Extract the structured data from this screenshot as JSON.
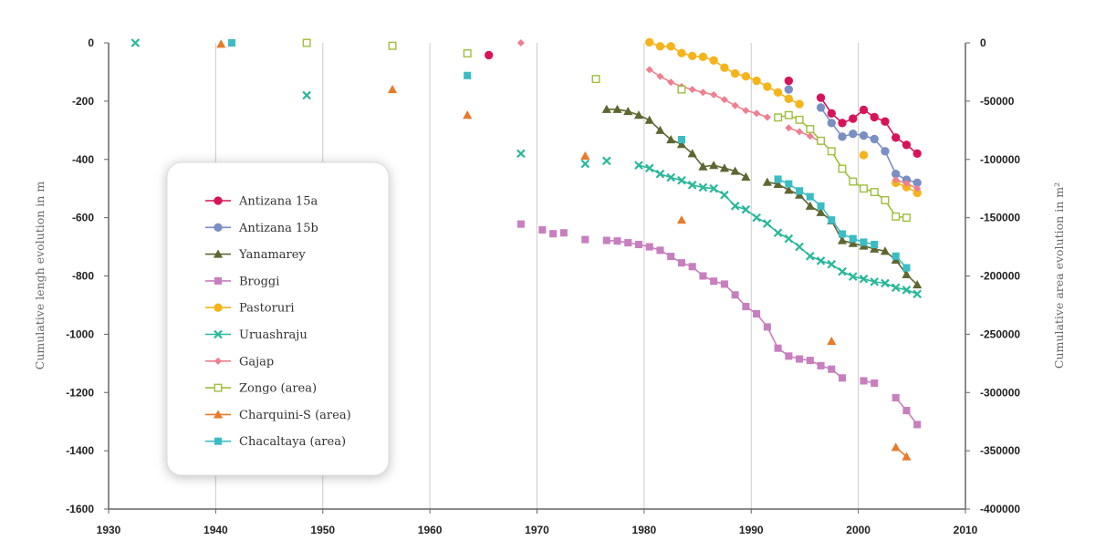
{
  "chart_data": {
    "type": "scatter",
    "title": "",
    "xlabel": "",
    "ylabel": "Cumulative lengh evolution in m",
    "y2label": "Cumulative area evolution in m²",
    "xlim": [
      1930,
      2010
    ],
    "ylim": [
      -1600,
      0
    ],
    "y2lim": [
      -400000,
      0
    ],
    "x_ticks": [
      1930,
      1940,
      1950,
      1960,
      1970,
      1980,
      1990,
      2000,
      2010
    ],
    "y_ticks": [
      0,
      -200,
      -400,
      -600,
      -800,
      -1000,
      -1200,
      -1400,
      -1600
    ],
    "y2_ticks": [
      "0",
      "-50000",
      "-100000",
      "-150000",
      "-200000",
      "-250000",
      "-300000",
      "-350000",
      "-400000"
    ],
    "grid": "vertical",
    "legend_position": "left",
    "series": [
      {
        "name": "Antizana 15a",
        "axis": "left",
        "color": "#d6145a",
        "marker": "circle",
        "points": [
          [
            1965.5,
            -42
          ],
          [
            1993.5,
            -130
          ],
          [
            1996.5,
            -188
          ],
          [
            1997.5,
            -242
          ],
          [
            1998.5,
            -275
          ],
          [
            1999.5,
            -260
          ],
          [
            2000.5,
            -230
          ],
          [
            2001.5,
            -255
          ],
          [
            2002.5,
            -270
          ],
          [
            2003.5,
            -325
          ],
          [
            2004.5,
            -350
          ],
          [
            2005.5,
            -380
          ]
        ],
        "connect_from": 2
      },
      {
        "name": "Antizana 15b",
        "axis": "left",
        "color": "#7a8fc2",
        "marker": "circle",
        "points": [
          [
            1993.5,
            -160
          ],
          [
            1996.5,
            -222
          ],
          [
            1997.5,
            -275
          ],
          [
            1998.5,
            -322
          ],
          [
            1999.5,
            -312
          ],
          [
            2000.5,
            -318
          ],
          [
            2001.5,
            -330
          ],
          [
            2002.5,
            -372
          ],
          [
            2003.5,
            -450
          ],
          [
            2004.5,
            -470
          ],
          [
            2005.5,
            -480
          ]
        ],
        "connect_from": 1
      },
      {
        "name": "Yanamarey",
        "axis": "left",
        "color": "#5e6632",
        "marker": "triangle",
        "points": [
          [
            1976.5,
            -228
          ],
          [
            1977.5,
            -228
          ],
          [
            1978.5,
            -235
          ],
          [
            1979.5,
            -248
          ],
          [
            1980.5,
            -265
          ],
          [
            1981.5,
            -300
          ],
          [
            1982.5,
            -332
          ],
          [
            1983.5,
            -348
          ],
          [
            1984.5,
            -380
          ],
          [
            1985.5,
            -425
          ],
          [
            1986.5,
            -420
          ],
          [
            1987.5,
            -430
          ],
          [
            1988.5,
            -440
          ],
          [
            1989.5,
            -460
          ],
          [
            1991.5,
            -478
          ],
          [
            1992.5,
            -485
          ],
          [
            1993.5,
            -505
          ],
          [
            1994.5,
            -522
          ],
          [
            1995.5,
            -560
          ],
          [
            1996.5,
            -582
          ],
          [
            1997.5,
            -610
          ],
          [
            1998.5,
            -678
          ],
          [
            1999.5,
            -688
          ],
          [
            2000.5,
            -697
          ],
          [
            2001.5,
            -707
          ],
          [
            2002.5,
            -715
          ],
          [
            2003.5,
            -745
          ],
          [
            2004.5,
            -795
          ],
          [
            2005.5,
            -830
          ]
        ],
        "segments": [
          [
            0,
            13
          ],
          [
            14,
            28
          ]
        ]
      },
      {
        "name": "Broggi",
        "axis": "left",
        "color": "#c77fbf",
        "marker": "square",
        "points": [
          [
            1968.5,
            -622
          ],
          [
            1970.5,
            -642
          ],
          [
            1971.5,
            -655
          ],
          [
            1972.5,
            -652
          ],
          [
            1974.5,
            -675
          ],
          [
            1976.5,
            -678
          ],
          [
            1977.5,
            -680
          ],
          [
            1978.5,
            -686
          ],
          [
            1979.5,
            -692
          ],
          [
            1980.5,
            -700
          ],
          [
            1981.5,
            -712
          ],
          [
            1982.5,
            -733
          ],
          [
            1983.5,
            -755
          ],
          [
            1984.5,
            -768
          ],
          [
            1985.5,
            -800
          ],
          [
            1986.5,
            -818
          ],
          [
            1987.5,
            -828
          ],
          [
            1988.5,
            -865
          ],
          [
            1989.5,
            -905
          ],
          [
            1990.5,
            -930
          ],
          [
            1991.5,
            -975
          ],
          [
            1992.5,
            -1048
          ],
          [
            1993.5,
            -1075
          ],
          [
            1994.5,
            -1085
          ],
          [
            1995.5,
            -1090
          ],
          [
            1996.5,
            -1108
          ],
          [
            1997.5,
            -1120
          ],
          [
            1998.5,
            -1150
          ],
          [
            2000.5,
            -1160
          ],
          [
            2001.5,
            -1168
          ],
          [
            2003.5,
            -1218
          ],
          [
            2004.5,
            -1262
          ],
          [
            2005.5,
            -1310
          ]
        ],
        "segments": [
          [
            5,
            27
          ],
          [
            28,
            29
          ],
          [
            30,
            32
          ]
        ]
      },
      {
        "name": "Pastoruri",
        "axis": "left",
        "color": "#f5b41c",
        "marker": "circle",
        "points": [
          [
            1980.5,
            2
          ],
          [
            1981.5,
            -12
          ],
          [
            1982.5,
            -12
          ],
          [
            1983.5,
            -35
          ],
          [
            1984.5,
            -45
          ],
          [
            1985.5,
            -48
          ],
          [
            1986.5,
            -60
          ],
          [
            1987.5,
            -85
          ],
          [
            1988.5,
            -105
          ],
          [
            1989.5,
            -115
          ],
          [
            1990.5,
            -130
          ],
          [
            1991.5,
            -150
          ],
          [
            1992.5,
            -170
          ],
          [
            1993.5,
            -192
          ],
          [
            1994.5,
            -210
          ],
          [
            2000.5,
            -385
          ],
          [
            2003.5,
            -480
          ],
          [
            2004.5,
            -495
          ],
          [
            2005.5,
            -515
          ]
        ],
        "segments": [
          [
            0,
            14
          ],
          [
            16,
            18
          ]
        ]
      },
      {
        "name": "Uruashraju",
        "axis": "left",
        "color": "#2ab89a",
        "marker": "cross",
        "points": [
          [
            1932.5,
            0
          ],
          [
            1948.5,
            -180
          ],
          [
            1968.5,
            -380
          ],
          [
            1974.5,
            -415
          ],
          [
            1976.5,
            -405
          ],
          [
            1979.5,
            -420
          ],
          [
            1980.5,
            -430
          ],
          [
            1981.5,
            -450
          ],
          [
            1982.5,
            -462
          ],
          [
            1983.5,
            -472
          ],
          [
            1984.5,
            -488
          ],
          [
            1985.5,
            -496
          ],
          [
            1986.5,
            -500
          ],
          [
            1987.5,
            -522
          ],
          [
            1988.5,
            -560
          ],
          [
            1989.5,
            -572
          ],
          [
            1990.5,
            -600
          ],
          [
            1991.5,
            -620
          ],
          [
            1992.5,
            -652
          ],
          [
            1993.5,
            -672
          ],
          [
            1994.5,
            -700
          ],
          [
            1995.5,
            -732
          ],
          [
            1996.5,
            -748
          ],
          [
            1997.5,
            -760
          ],
          [
            1998.5,
            -785
          ],
          [
            1999.5,
            -802
          ],
          [
            2000.5,
            -810
          ],
          [
            2001.5,
            -820
          ],
          [
            2002.5,
            -825
          ],
          [
            2003.5,
            -840
          ],
          [
            2004.5,
            -848
          ],
          [
            2005.5,
            -862
          ]
        ],
        "connect_from": 5
      },
      {
        "name": "Gajap",
        "axis": "left",
        "color": "#ef7f8f",
        "marker": "diamond",
        "points": [
          [
            1968.5,
            0
          ],
          [
            1980.5,
            -92
          ],
          [
            1981.5,
            -115
          ],
          [
            1982.5,
            -135
          ],
          [
            1983.5,
            -150
          ],
          [
            1984.5,
            -160
          ],
          [
            1985.5,
            -170
          ],
          [
            1986.5,
            -178
          ],
          [
            1987.5,
            -195
          ],
          [
            1988.5,
            -215
          ],
          [
            1989.5,
            -232
          ],
          [
            1990.5,
            -242
          ],
          [
            1991.5,
            -255
          ],
          [
            1993.5,
            -292
          ],
          [
            1994.5,
            -305
          ],
          [
            1995.5,
            -320
          ],
          [
            1996.5,
            -340
          ],
          [
            2003.5,
            -470
          ],
          [
            2004.5,
            -482
          ],
          [
            2005.5,
            -500
          ]
        ],
        "segments": [
          [
            1,
            12
          ],
          [
            13,
            16
          ],
          [
            17,
            19
          ]
        ]
      },
      {
        "name": "Zongo (area)",
        "axis": "right",
        "color": "#9dbf3c",
        "marker": "square-open",
        "points": [
          [
            1948.5,
            0
          ],
          [
            1956.5,
            -2500
          ],
          [
            1963.5,
            -9000
          ],
          [
            1975.5,
            -31000
          ],
          [
            1983.5,
            -40000
          ],
          [
            1992.5,
            -64000
          ],
          [
            1993.5,
            -62000
          ],
          [
            1994.5,
            -66000
          ],
          [
            1995.5,
            -74000
          ],
          [
            1996.5,
            -84000
          ],
          [
            1997.5,
            -93000
          ],
          [
            1998.5,
            -108000
          ],
          [
            1999.5,
            -119000
          ],
          [
            2000.5,
            -125000
          ],
          [
            2001.5,
            -128000
          ],
          [
            2002.5,
            -135000
          ],
          [
            2003.5,
            -149000
          ],
          [
            2004.5,
            -150000
          ]
        ],
        "connect_from": 5
      },
      {
        "name": "Charquini-S (area)",
        "axis": "right",
        "color": "#e87a2a",
        "marker": "triangle",
        "points": [
          [
            1940.5,
            -1000
          ],
          [
            1956.5,
            -40000
          ],
          [
            1963.5,
            -62000
          ],
          [
            1974.5,
            -97000
          ],
          [
            1983.5,
            -152000
          ],
          [
            1997.5,
            -256000
          ],
          [
            2003.5,
            -347000
          ],
          [
            2004.5,
            -355000
          ]
        ],
        "segments": [
          [
            6,
            7
          ]
        ]
      },
      {
        "name": "Chacaltaya (area)",
        "axis": "right",
        "color": "#3cbcc4",
        "marker": "square",
        "points": [
          [
            1941.5,
            0
          ],
          [
            1963.5,
            -28000
          ],
          [
            1983.5,
            -83000
          ],
          [
            1992.5,
            -117000
          ],
          [
            1993.5,
            -121000
          ],
          [
            1994.5,
            -127000
          ],
          [
            1995.5,
            -132000
          ],
          [
            1996.5,
            -140000
          ],
          [
            1997.5,
            -152000
          ],
          [
            1998.5,
            -164000
          ],
          [
            1999.5,
            -168000
          ],
          [
            2000.5,
            -171000
          ],
          [
            2001.5,
            -173000
          ],
          [
            2003.5,
            -183000
          ],
          [
            2004.5,
            -193000
          ]
        ],
        "segments": [
          [
            3,
            12
          ],
          [
            13,
            14
          ]
        ]
      }
    ]
  }
}
